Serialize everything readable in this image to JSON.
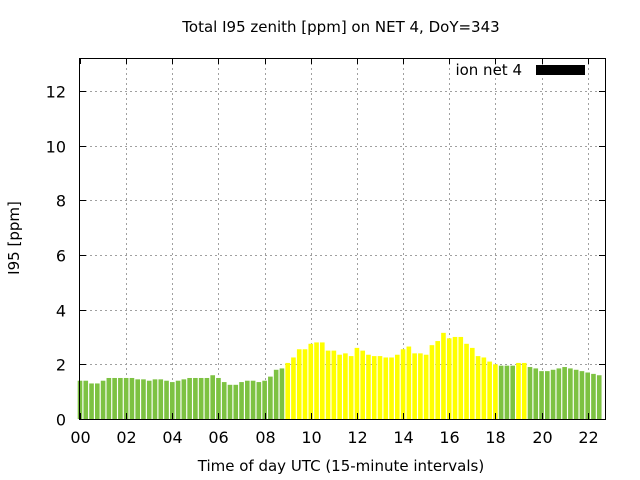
{
  "chart_data": {
    "type": "bar",
    "title": "Total I95 zenith [ppm] on NET 4, DoY=343",
    "xlabel": "Time of day UTC (15-minute intervals)",
    "ylabel": "I95 [ppm]",
    "xlim": [
      0,
      22.75
    ],
    "ylim": [
      0,
      13.2
    ],
    "xticks": [
      "00",
      "02",
      "04",
      "06",
      "08",
      "10",
      "12",
      "14",
      "16",
      "18",
      "20",
      "22"
    ],
    "yticks": [
      "0",
      "2",
      "4",
      "6",
      "8",
      "10",
      "12"
    ],
    "grid": true,
    "legend": {
      "label": "ion net 4",
      "placement": "top-right",
      "color": "#000000"
    },
    "colors": {
      "green": "#7dc242",
      "yellow": "#ffff00"
    },
    "x": [
      0.0,
      0.25,
      0.5,
      0.75,
      1.0,
      1.25,
      1.5,
      1.75,
      2.0,
      2.25,
      2.5,
      2.75,
      3.0,
      3.25,
      3.5,
      3.75,
      4.0,
      4.25,
      4.5,
      4.75,
      5.0,
      5.25,
      5.5,
      5.75,
      6.0,
      6.25,
      6.5,
      6.75,
      7.0,
      7.25,
      7.5,
      7.75,
      8.0,
      8.25,
      8.5,
      8.75,
      9.0,
      9.25,
      9.5,
      9.75,
      10.0,
      10.25,
      10.5,
      10.75,
      11.0,
      11.25,
      11.5,
      11.75,
      12.0,
      12.25,
      12.5,
      12.75,
      13.0,
      13.25,
      13.5,
      13.75,
      14.0,
      14.25,
      14.5,
      14.75,
      15.0,
      15.25,
      15.5,
      15.75,
      16.0,
      16.25,
      16.5,
      16.75,
      17.0,
      17.25,
      17.5,
      17.75,
      18.0,
      18.25,
      18.5,
      18.75,
      19.0,
      19.25,
      19.5,
      19.75,
      20.0,
      20.25,
      20.5,
      20.75,
      21.0,
      21.25,
      21.5,
      21.75,
      22.0,
      22.25,
      22.5
    ],
    "values": [
      1.4,
      1.4,
      1.3,
      1.3,
      1.4,
      1.5,
      1.5,
      1.5,
      1.5,
      1.5,
      1.45,
      1.45,
      1.4,
      1.45,
      1.45,
      1.4,
      1.35,
      1.4,
      1.45,
      1.5,
      1.5,
      1.5,
      1.5,
      1.6,
      1.5,
      1.35,
      1.25,
      1.25,
      1.35,
      1.4,
      1.4,
      1.35,
      1.4,
      1.55,
      1.8,
      1.85,
      2.05,
      2.25,
      2.55,
      2.55,
      2.75,
      2.8,
      2.8,
      2.5,
      2.5,
      2.35,
      2.4,
      2.3,
      2.6,
      2.5,
      2.35,
      2.3,
      2.3,
      2.25,
      2.25,
      2.35,
      2.55,
      2.65,
      2.4,
      2.4,
      2.35,
      2.7,
      2.85,
      3.15,
      2.95,
      3.0,
      3.0,
      2.75,
      2.6,
      2.3,
      2.25,
      2.1,
      2.0,
      1.95,
      1.95,
      1.95,
      2.05,
      2.05,
      1.9,
      1.85,
      1.75,
      1.75,
      1.8,
      1.85,
      1.9,
      1.85,
      1.8,
      1.75,
      1.7,
      1.65,
      1.6
    ],
    "bar_colors": [
      "green",
      "green",
      "green",
      "green",
      "green",
      "green",
      "green",
      "green",
      "green",
      "green",
      "green",
      "green",
      "green",
      "green",
      "green",
      "green",
      "green",
      "green",
      "green",
      "green",
      "green",
      "green",
      "green",
      "green",
      "green",
      "green",
      "green",
      "green",
      "green",
      "green",
      "green",
      "green",
      "green",
      "green",
      "green",
      "green",
      "yellow",
      "yellow",
      "yellow",
      "yellow",
      "yellow",
      "yellow",
      "yellow",
      "yellow",
      "yellow",
      "yellow",
      "yellow",
      "yellow",
      "yellow",
      "yellow",
      "yellow",
      "yellow",
      "yellow",
      "yellow",
      "yellow",
      "yellow",
      "yellow",
      "yellow",
      "yellow",
      "yellow",
      "yellow",
      "yellow",
      "yellow",
      "yellow",
      "yellow",
      "yellow",
      "yellow",
      "yellow",
      "yellow",
      "yellow",
      "yellow",
      "yellow",
      "yellow",
      "green",
      "green",
      "green",
      "yellow",
      "yellow",
      "green",
      "green",
      "green",
      "green",
      "green",
      "green",
      "green",
      "green",
      "green",
      "green",
      "green",
      "green",
      "green"
    ]
  }
}
